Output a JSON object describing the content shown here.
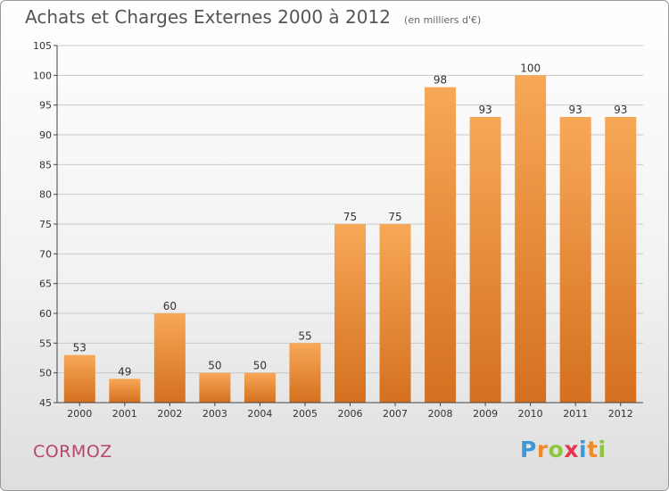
{
  "header": {
    "title": "Achats et Charges Externes 2000 à 2012",
    "unit": "(en milliers d'€)"
  },
  "footer": {
    "commune": "CORMOZ",
    "logo_letters": [
      "P",
      "r",
      "o",
      "x",
      "i",
      "t",
      "i"
    ],
    "logo_colors": [
      "#3a9ad9",
      "#f08a24",
      "#8cc63f",
      "#e8344e",
      "#3a9ad9",
      "#f08a24",
      "#8cc63f"
    ]
  },
  "colors": {
    "bar_top": "#f7a857",
    "bar_bottom": "#d4701f",
    "grid": "#c8c8c8",
    "axis": "#444444"
  },
  "chart_data": {
    "type": "bar",
    "title": "Achats et Charges Externes 2000 à 2012",
    "subtitle": "(en milliers d'€)",
    "categories": [
      "2000",
      "2001",
      "2002",
      "2003",
      "2004",
      "2005",
      "2006",
      "2007",
      "2008",
      "2009",
      "2010",
      "2011",
      "2012"
    ],
    "values": [
      53,
      49,
      60,
      50,
      50,
      55,
      75,
      75,
      98,
      93,
      100,
      93,
      93
    ],
    "ylim": [
      45,
      105
    ],
    "yticks": [
      45,
      50,
      55,
      60,
      65,
      70,
      75,
      80,
      85,
      90,
      95,
      100,
      105
    ],
    "grid": true,
    "legend": "none"
  }
}
